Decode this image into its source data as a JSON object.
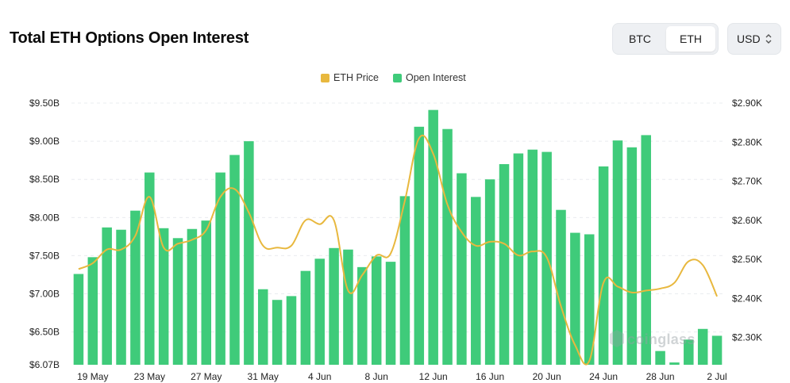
{
  "header": {
    "title": "Total ETH Options Open Interest"
  },
  "asset_toggle": {
    "options": [
      "BTC",
      "ETH"
    ],
    "selected": "ETH"
  },
  "currency_select": {
    "value": "USD",
    "icon": "chevron-up-down-icon"
  },
  "watermark": {
    "text": "coinglass"
  },
  "colors": {
    "price": "#e8b83e",
    "open_interest": "#3fcb7a"
  },
  "chart_data": {
    "type": "bar",
    "title": "Total ETH Options Open Interest",
    "legend": [
      "ETH Price",
      "Open Interest"
    ],
    "legend_position": "top-center",
    "grid": true,
    "x_tick_labels": [
      "19 May",
      "23 May",
      "27 May",
      "31 May",
      "4 Jun",
      "8 Jun",
      "12 Jun",
      "16 Jun",
      "20 Jun",
      "24 Jun",
      "28 Jun",
      "2 Jul"
    ],
    "y_left_ticks": [
      "$6.07B",
      "$6.50B",
      "$7.00B",
      "$7.50B",
      "$8.00B",
      "$8.50B",
      "$9.00B",
      "$9.50B"
    ],
    "y_right_ticks": [
      "$2.30K",
      "$2.40K",
      "$2.50K",
      "$2.60K",
      "$2.70K",
      "$2.80K",
      "$2.90K"
    ],
    "y_left_range": [
      6.07,
      9.5
    ],
    "y_right_range": [
      2.23,
      2.9
    ],
    "categories": [
      "18 May",
      "19 May",
      "20 May",
      "21 May",
      "22 May",
      "23 May",
      "24 May",
      "25 May",
      "26 May",
      "27 May",
      "28 May",
      "29 May",
      "30 May",
      "31 May",
      "1 Jun",
      "2 Jun",
      "3 Jun",
      "4 Jun",
      "5 Jun",
      "6 Jun",
      "7 Jun",
      "8 Jun",
      "9 Jun",
      "10 Jun",
      "11 Jun",
      "12 Jun",
      "13 Jun",
      "14 Jun",
      "15 Jun",
      "16 Jun",
      "17 Jun",
      "18 Jun",
      "19 Jun",
      "20 Jun",
      "21 Jun",
      "22 Jun",
      "23 Jun",
      "24 Jun",
      "25 Jun",
      "26 Jun",
      "27 Jun",
      "28 Jun",
      "29 Jun",
      "30 Jun",
      "1 Jul",
      "2 Jul"
    ],
    "series": [
      {
        "name": "Open Interest",
        "type": "bar",
        "axis": "left",
        "unit": "B USD",
        "values": [
          7.26,
          7.48,
          7.87,
          7.84,
          8.09,
          8.59,
          7.86,
          7.73,
          7.85,
          7.96,
          8.59,
          8.82,
          9.0,
          7.06,
          6.92,
          6.97,
          7.3,
          7.46,
          7.6,
          7.58,
          7.35,
          7.49,
          7.42,
          8.28,
          9.19,
          9.41,
          9.16,
          8.58,
          8.27,
          8.5,
          8.7,
          8.84,
          8.89,
          8.86,
          8.1,
          7.8,
          7.78,
          8.67,
          9.01,
          8.92,
          9.08,
          6.25,
          6.1,
          6.4,
          6.54,
          6.45
        ]
      },
      {
        "name": "ETH Price",
        "type": "line",
        "axis": "right",
        "unit": "K USD",
        "values": [
          2.475,
          2.49,
          2.525,
          2.525,
          2.56,
          2.66,
          2.53,
          2.54,
          2.55,
          2.575,
          2.66,
          2.68,
          2.62,
          2.535,
          2.53,
          2.535,
          2.6,
          2.59,
          2.6,
          2.42,
          2.46,
          2.51,
          2.515,
          2.65,
          2.81,
          2.77,
          2.64,
          2.57,
          2.535,
          2.545,
          2.54,
          2.51,
          2.52,
          2.505,
          2.38,
          2.28,
          2.24,
          2.44,
          2.43,
          2.415,
          2.42,
          2.425,
          2.44,
          2.495,
          2.485,
          2.405
        ]
      }
    ]
  }
}
